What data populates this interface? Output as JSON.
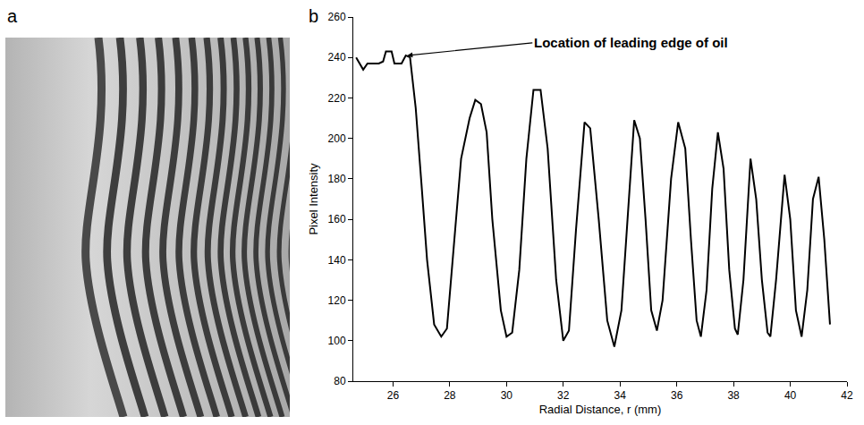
{
  "panel_labels": [
    "a",
    "b"
  ],
  "chart_data": {
    "type": "line",
    "x": [
      24.7,
      24.85,
      24.95,
      25.1,
      25.3,
      25.5,
      25.65,
      25.75,
      25.95,
      26.05,
      26.3,
      26.45,
      26.6,
      26.8,
      27.0,
      27.2,
      27.45,
      27.7,
      27.9,
      28.1,
      28.4,
      28.7,
      28.9,
      29.1,
      29.3,
      29.5,
      29.8,
      30.0,
      30.2,
      30.45,
      30.7,
      30.95,
      31.2,
      31.45,
      31.75,
      32.0,
      32.2,
      32.45,
      32.75,
      32.95,
      33.25,
      33.55,
      33.8,
      34.05,
      34.3,
      34.5,
      34.7,
      34.9,
      35.1,
      35.3,
      35.5,
      35.8,
      36.05,
      36.3,
      36.5,
      36.7,
      36.85,
      37.05,
      37.25,
      37.45,
      37.65,
      37.85,
      38.05,
      38.15,
      38.35,
      38.6,
      38.8,
      39.0,
      39.2,
      39.3,
      39.5,
      39.8,
      40.0,
      40.2,
      40.4,
      40.6,
      40.8,
      41.0,
      41.2,
      41.4
    ],
    "values": [
      240,
      236,
      234,
      237,
      237,
      237,
      238,
      243,
      243,
      237,
      237,
      241,
      240,
      215,
      178,
      140,
      108,
      102,
      106,
      140,
      190,
      210,
      219,
      217,
      203,
      160,
      115,
      102,
      104,
      135,
      190,
      224,
      224,
      195,
      130,
      100,
      105,
      155,
      208,
      205,
      160,
      110,
      97,
      115,
      170,
      209,
      200,
      160,
      115,
      105,
      120,
      180,
      208,
      195,
      150,
      110,
      102,
      125,
      175,
      203,
      185,
      135,
      106,
      103,
      130,
      190,
      170,
      130,
      104,
      102,
      130,
      182,
      160,
      115,
      102,
      125,
      170,
      181,
      150,
      108
    ],
    "color": "#000000",
    "xlabel": "Radial Distance, r (mm)",
    "ylabel": "Pixel Intensity",
    "xlim": [
      24.6,
      42
    ],
    "xticks": [
      26,
      28,
      30,
      32,
      34,
      36,
      38,
      40,
      42
    ],
    "ylim": [
      80,
      260
    ],
    "yticks": [
      80,
      100,
      120,
      140,
      160,
      180,
      200,
      220,
      240,
      260
    ],
    "grid": false,
    "annotations": [
      {
        "text": "Location of leading edge of oil",
        "x": 26.5,
        "y": 241
      }
    ]
  }
}
